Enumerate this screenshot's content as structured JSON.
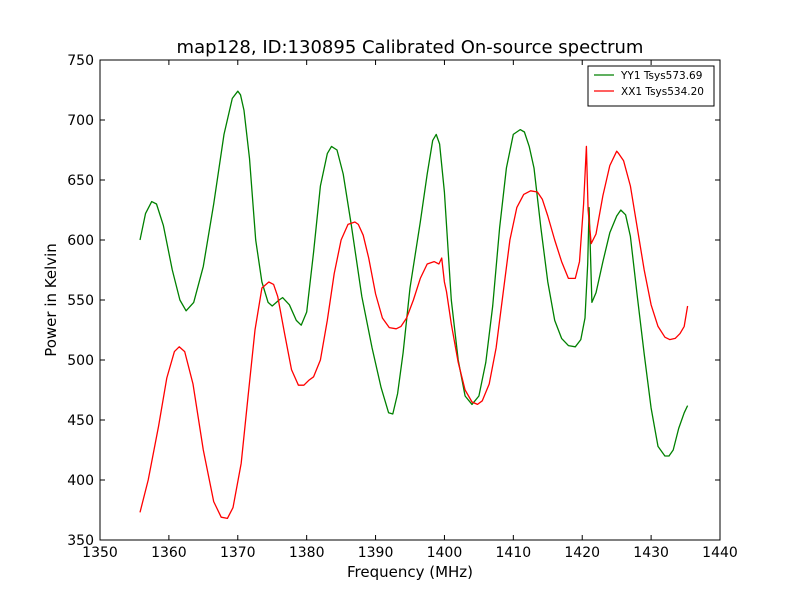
{
  "chart_data": {
    "type": "line",
    "title": "map128, ID:130895 Calibrated On-source spectrum",
    "xlabel": "Frequency (MHz)",
    "ylabel": "Power in Kelvin",
    "xlim": [
      1350,
      1440
    ],
    "ylim": [
      350,
      750
    ],
    "xticks": [
      1350,
      1360,
      1370,
      1380,
      1390,
      1400,
      1410,
      1420,
      1430,
      1440
    ],
    "yticks": [
      350,
      400,
      450,
      500,
      550,
      600,
      650,
      700,
      750
    ],
    "grid": false,
    "legend_position": "top-right",
    "series": [
      {
        "name": "YY1 Tsys573.69",
        "color": "#008000",
        "x": [
          1355.8,
          1356.6,
          1357.5,
          1358.2,
          1359.2,
          1360.5,
          1361.6,
          1362.5,
          1363.6,
          1365.0,
          1366.5,
          1368.0,
          1369.2,
          1370.0,
          1370.4,
          1370.9,
          1371.7,
          1372.6,
          1373.5,
          1374.4,
          1375.0,
          1376.0,
          1376.5,
          1377.5,
          1378.5,
          1379.2,
          1380.0,
          1381.0,
          1382.0,
          1383.0,
          1383.6,
          1384.4,
          1385.3,
          1386.5,
          1388.0,
          1389.5,
          1390.8,
          1391.9,
          1392.5,
          1393.2,
          1394.0,
          1395.0,
          1396.5,
          1397.5,
          1398.3,
          1398.8,
          1399.3,
          1400.0,
          1401.0,
          1402.0,
          1403.0,
          1404.0,
          1405.0,
          1406.0,
          1407.0,
          1408.0,
          1409.0,
          1410.0,
          1411.0,
          1411.6,
          1412.3,
          1413.0,
          1414.0,
          1415.0,
          1416.0,
          1417.0,
          1418.0,
          1419.0,
          1419.8,
          1420.4,
          1420.8,
          1421.0,
          1421.4,
          1422.0,
          1423.0,
          1424.0,
          1425.0,
          1425.6,
          1426.3,
          1427.0,
          1428.0,
          1429.0,
          1430.0,
          1431.0,
          1432.0,
          1432.6,
          1433.2,
          1434.0,
          1434.8,
          1435.3
        ],
        "values": [
          600,
          622,
          632,
          630,
          612,
          575,
          550,
          541,
          548,
          578,
          630,
          688,
          718,
          724,
          721,
          708,
          668,
          600,
          565,
          548,
          545,
          550,
          552,
          546,
          533,
          529,
          540,
          590,
          645,
          672,
          678,
          675,
          655,
          612,
          553,
          510,
          477,
          456,
          455,
          472,
          506,
          560,
          615,
          655,
          683,
          688,
          680,
          640,
          550,
          500,
          470,
          463,
          470,
          498,
          545,
          610,
          660,
          688,
          692,
          690,
          678,
          660,
          610,
          565,
          533,
          518,
          512,
          511,
          517,
          535,
          580,
          627,
          548,
          556,
          582,
          606,
          620,
          625,
          621,
          603,
          553,
          505,
          460,
          428,
          420,
          420,
          425,
          443,
          456,
          462
        ]
      },
      {
        "name": "XX1 Tsys534.20",
        "color": "#ff0000",
        "x": [
          1355.8,
          1357.0,
          1358.5,
          1359.7,
          1360.8,
          1361.5,
          1362.3,
          1363.5,
          1365.0,
          1366.5,
          1367.6,
          1368.5,
          1369.3,
          1370.5,
          1371.5,
          1372.5,
          1373.5,
          1374.5,
          1375.2,
          1375.8,
          1376.8,
          1377.8,
          1378.8,
          1379.6,
          1380.3,
          1381.0,
          1382.0,
          1383.0,
          1384.0,
          1385.0,
          1386.0,
          1387.0,
          1387.5,
          1388.2,
          1389.0,
          1390.0,
          1391.0,
          1392.0,
          1393.0,
          1393.7,
          1394.5,
          1395.5,
          1396.5,
          1397.5,
          1398.5,
          1399.2,
          1399.6,
          1400.0,
          1400.3,
          1401.0,
          1402.0,
          1403.0,
          1404.0,
          1404.8,
          1405.5,
          1406.5,
          1407.5,
          1408.5,
          1409.5,
          1410.5,
          1411.5,
          1412.5,
          1413.5,
          1414.2,
          1415.0,
          1416.0,
          1417.0,
          1418.0,
          1419.0,
          1419.6,
          1420.2,
          1420.6,
          1420.85,
          1421.3,
          1422.0,
          1423.0,
          1424.0,
          1425.0,
          1425.3,
          1426.0,
          1427.0,
          1428.0,
          1429.0,
          1430.0,
          1431.0,
          1432.0,
          1432.7,
          1433.5,
          1434.2,
          1434.8,
          1435.3
        ],
        "values": [
          373,
          400,
          445,
          485,
          507,
          511,
          507,
          480,
          425,
          382,
          369,
          368,
          377,
          414,
          470,
          525,
          560,
          565,
          563,
          553,
          522,
          492,
          479,
          479,
          483,
          486,
          500,
          533,
          572,
          600,
          613,
          615,
          613,
          604,
          585,
          555,
          535,
          527,
          526,
          528,
          535,
          550,
          568,
          580,
          582,
          580,
          585,
          565,
          557,
          530,
          498,
          475,
          465,
          463,
          466,
          480,
          510,
          555,
          600,
          627,
          638,
          641,
          640,
          634,
          620,
          600,
          582,
          568,
          568,
          582,
          630,
          678,
          625,
          597,
          605,
          637,
          662,
          674,
          672,
          666,
          645,
          610,
          575,
          546,
          528,
          519,
          517,
          518,
          522,
          528,
          545
        ]
      }
    ]
  }
}
